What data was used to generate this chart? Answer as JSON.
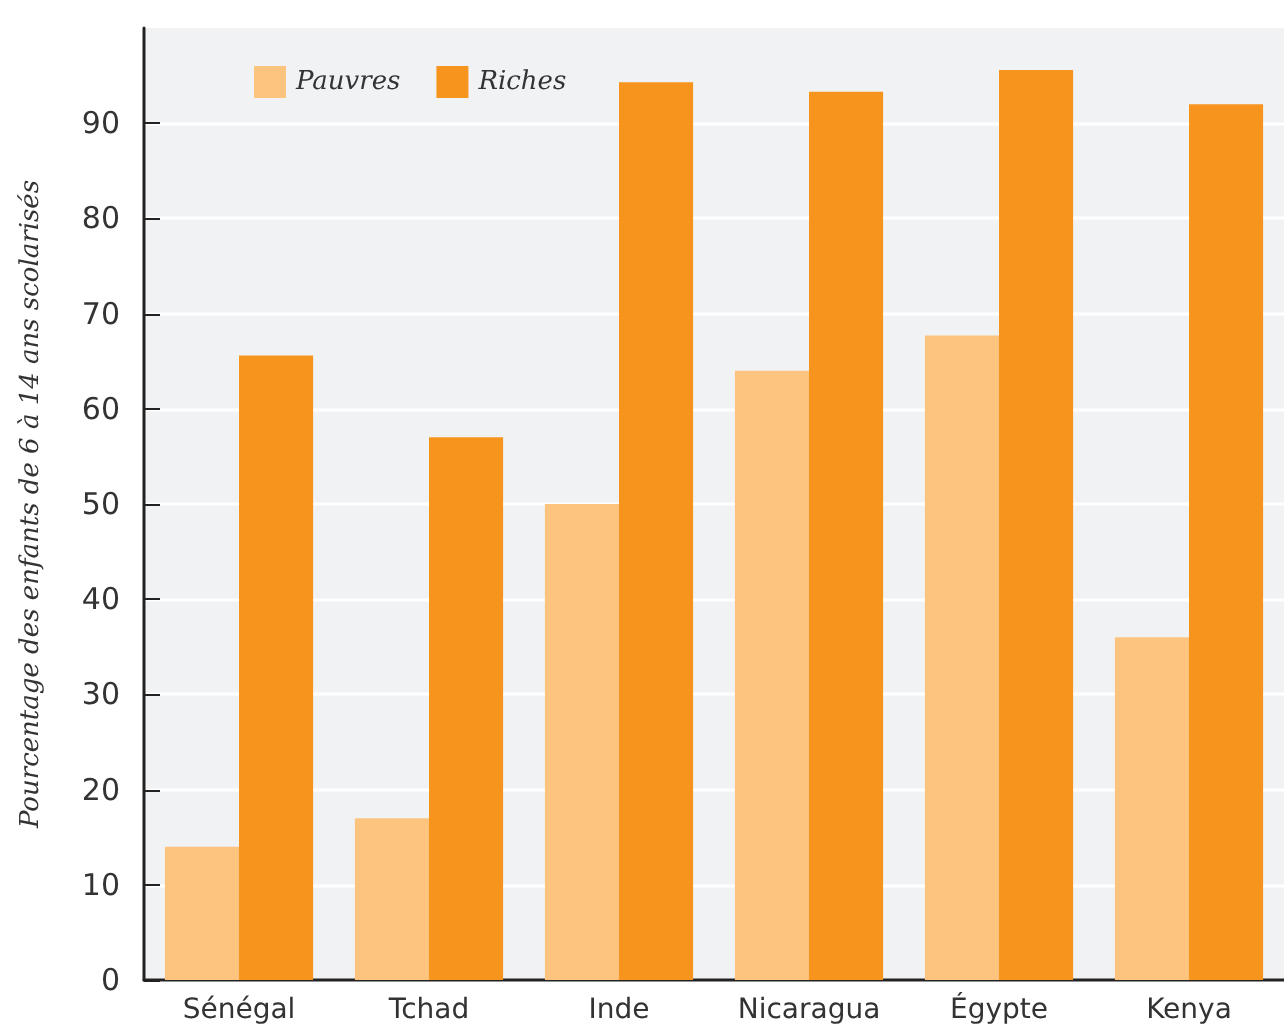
{
  "chart_data": {
    "type": "bar",
    "ylabel": "Pourcentage des enfants de 6 à 14 ans scolarisés",
    "categories": [
      "Sénégal",
      "Tchad",
      "Inde",
      "Nicaragua",
      "Égypte",
      "Kenya"
    ],
    "series": [
      {
        "name": "Pauvres",
        "color": "#fcc47f",
        "values": [
          14,
          17,
          50,
          64,
          67.7,
          36
        ]
      },
      {
        "name": "Riches",
        "color": "#f7941d",
        "values": [
          65.6,
          57,
          94.3,
          93.3,
          95.6,
          92
        ]
      }
    ],
    "ylim": [
      0,
      100
    ],
    "yticks": [
      0,
      10,
      20,
      30,
      40,
      50,
      60,
      70,
      80,
      90
    ],
    "grid": "y",
    "legend": "top left"
  }
}
